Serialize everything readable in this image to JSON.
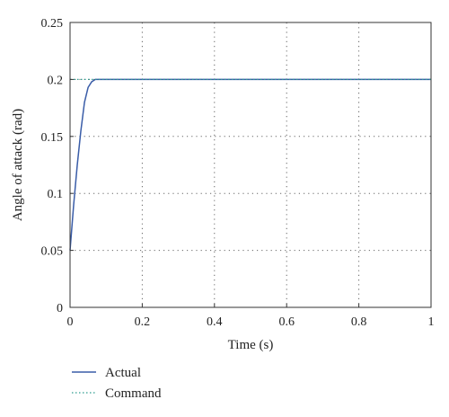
{
  "chart_data": {
    "type": "line",
    "xlabel": "Time (s)",
    "ylabel": "Angle of attack (rad)",
    "xlim": [
      0,
      1
    ],
    "ylim": [
      0,
      0.25
    ],
    "grid": true,
    "x_ticks": [
      "0",
      "0.2",
      "0.4",
      "0.6",
      "0.8",
      "1"
    ],
    "y_ticks": [
      "0",
      "0.05",
      "0.1",
      "0.15",
      "0.2",
      "0.25"
    ],
    "legend_position": "bottom-left",
    "series": [
      {
        "name": "Actual",
        "color": "#3a5da8",
        "style": "solid",
        "x": [
          0,
          0.01,
          0.02,
          0.03,
          0.04,
          0.05,
          0.06,
          0.07,
          0.08,
          0.1,
          0.2,
          0.4,
          0.6,
          0.8,
          1.0
        ],
        "y": [
          0.05,
          0.09,
          0.125,
          0.155,
          0.18,
          0.193,
          0.198,
          0.2,
          0.2,
          0.2,
          0.2,
          0.2,
          0.2,
          0.2,
          0.2
        ]
      },
      {
        "name": "Command",
        "color": "#2f9c8f",
        "style": "dotted",
        "x": [
          0,
          1
        ],
        "y": [
          0.2,
          0.2
        ]
      }
    ]
  }
}
